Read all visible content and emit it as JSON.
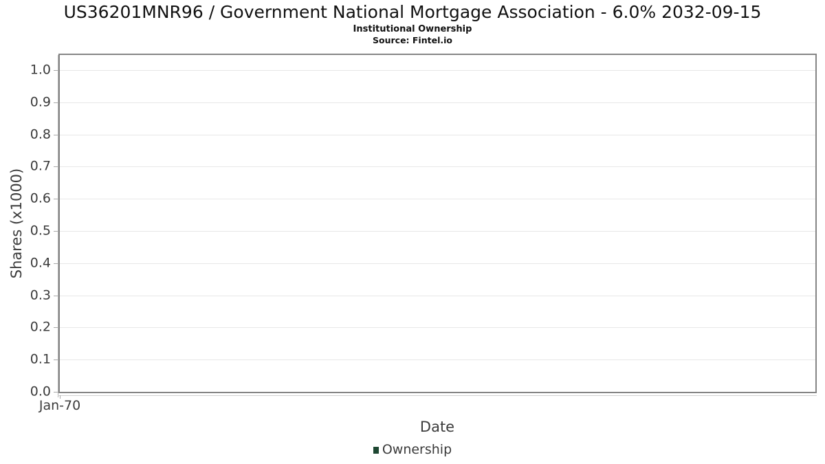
{
  "header": {
    "title": "US36201MNR96 / Government National Mortgage Association - 6.0% 2032-09-15",
    "subtitle": "Institutional Ownership",
    "source": "Source: Fintel.io"
  },
  "chart_data": {
    "type": "line",
    "title": "US36201MNR96 / Government National Mortgage Association - 6.0% 2032-09-15",
    "subtitle": "Institutional Ownership",
    "source": "Source: Fintel.io",
    "xlabel": "Date",
    "ylabel": "Shares (x1000)",
    "ylim": [
      0.0,
      1.047
    ],
    "grid": true,
    "legend_position": "bottom-center",
    "yticks": [
      {
        "value": 1.0,
        "label": "1.0"
      },
      {
        "value": 0.9,
        "label": "0.9"
      },
      {
        "value": 0.8,
        "label": "0.8"
      },
      {
        "value": 0.7,
        "label": "0.7"
      },
      {
        "value": 0.6,
        "label": "0.6"
      },
      {
        "value": 0.5,
        "label": "0.5"
      },
      {
        "value": 0.4,
        "label": "0.4"
      },
      {
        "value": 0.3,
        "label": "0.3"
      },
      {
        "value": 0.2,
        "label": "0.2"
      },
      {
        "value": 0.1,
        "label": "0.1"
      },
      {
        "value": 0.0,
        "label": "0.0"
      }
    ],
    "xticks": [
      {
        "label": "Jan-70",
        "pos": 0.0
      }
    ],
    "series": [
      {
        "name": "Ownership",
        "color": "#1e4732",
        "x": [],
        "values": []
      }
    ],
    "colors": {
      "plot_border": "#848484",
      "gridline": "#e7e7e7",
      "tick": "#a8a8a8",
      "axis_text": "#3b3b3b",
      "title_text": "#111111",
      "legend_green": "#1e4732",
      "background": "#ffffff"
    }
  }
}
